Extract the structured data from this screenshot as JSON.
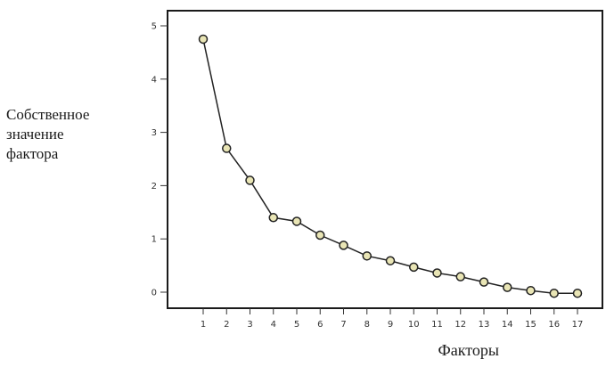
{
  "chart_data": {
    "type": "line",
    "title": "",
    "ylabel_lines": [
      "Собственное",
      "значение",
      "фактора"
    ],
    "xlabel": "Факторы",
    "x": [
      1,
      2,
      3,
      4,
      5,
      6,
      7,
      8,
      9,
      10,
      11,
      12,
      13,
      14,
      15,
      16,
      17
    ],
    "series": [
      {
        "values": [
          4.75,
          2.7,
          2.1,
          1.4,
          1.33,
          1.07,
          0.88,
          0.68,
          0.59,
          0.47,
          0.36,
          0.29,
          0.19,
          0.09,
          0.03,
          -0.02,
          -0.02
        ]
      }
    ],
    "xlim": [
      1,
      17
    ],
    "ylim": [
      0,
      5
    ],
    "yticks": [
      0,
      1,
      2,
      3,
      4,
      5
    ],
    "grid": false,
    "marker_fill": "#e9e5b5",
    "marker_stroke": "#222222",
    "line_color": "#222222"
  }
}
